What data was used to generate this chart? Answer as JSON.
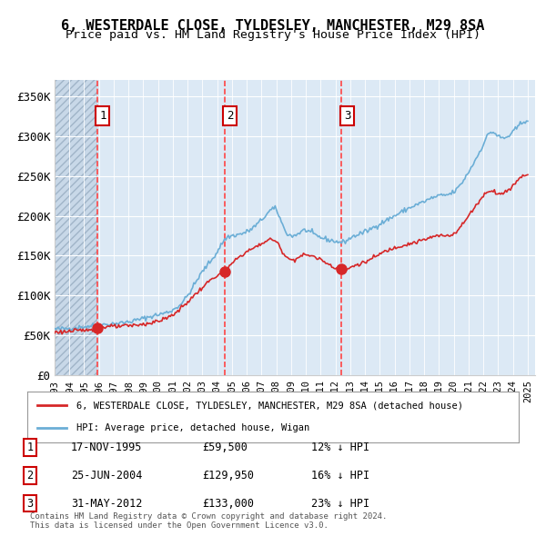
{
  "title1": "6, WESTERDALE CLOSE, TYLDESLEY, MANCHESTER, M29 8SA",
  "title2": "Price paid vs. HM Land Registry's House Price Index (HPI)",
  "legend_label1": "6, WESTERDALE CLOSE, TYLDESLEY, MANCHESTER, M29 8SA (detached house)",
  "legend_label2": "HPI: Average price, detached house, Wigan",
  "transactions": [
    {
      "num": 1,
      "date": "17-NOV-1995",
      "date_val": 1995.88,
      "price": 59500,
      "pct": "12%",
      "dir": "↓"
    },
    {
      "num": 2,
      "date": "25-JUN-2004",
      "date_val": 2004.48,
      "price": 129950,
      "pct": "16%",
      "dir": "↓"
    },
    {
      "num": 3,
      "date": "31-MAY-2012",
      "date_val": 2012.41,
      "price": 133000,
      "pct": "23%",
      "dir": "↓"
    }
  ],
  "copyright_text": "Contains HM Land Registry data © Crown copyright and database right 2024.\nThis data is licensed under the Open Government Licence v3.0.",
  "hpi_color": "#6baed6",
  "price_color": "#d62728",
  "dot_color": "#d62728",
  "vline_color": "#ff4444",
  "background_color": "#dce9f5",
  "plot_bg": "#dce9f5",
  "hatch_color": "#b0c4d8",
  "ylim": [
    0,
    370000
  ],
  "xlim_start": 1993.0,
  "xlim_end": 2025.5,
  "yticks": [
    0,
    50000,
    100000,
    150000,
    200000,
    250000,
    300000,
    350000
  ],
  "ytick_labels": [
    "£0",
    "£50K",
    "£100K",
    "£150K",
    "£200K",
    "£250K",
    "£300K",
    "£350K"
  ],
  "xticks": [
    1993,
    1994,
    1995,
    1996,
    1997,
    1998,
    1999,
    2000,
    2001,
    2002,
    2003,
    2004,
    2005,
    2006,
    2007,
    2008,
    2009,
    2010,
    2011,
    2012,
    2013,
    2014,
    2015,
    2016,
    2017,
    2018,
    2019,
    2020,
    2021,
    2022,
    2023,
    2024,
    2025
  ]
}
